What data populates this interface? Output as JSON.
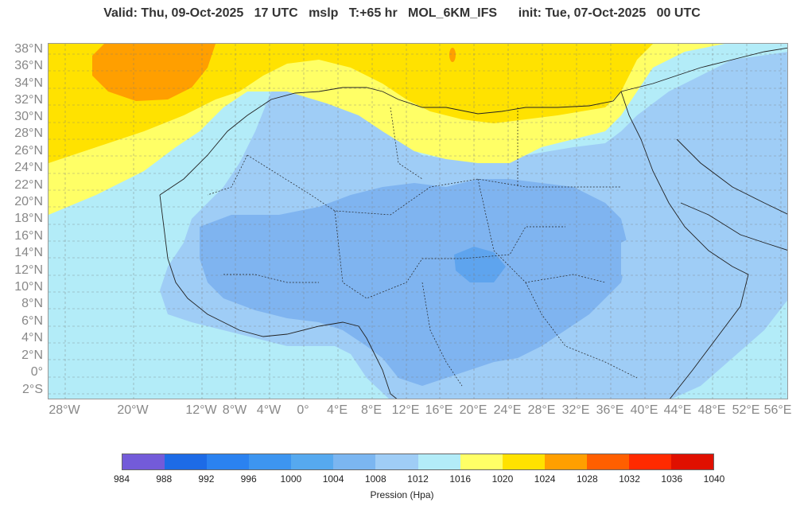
{
  "header": {
    "title": "Valid: Thu, 09-Oct-2025   17 UTC   mslp   T:+65 hr   MOL_6KM_IFS      init: Tue, 07-Oct-2025   00 UTC"
  },
  "map": {
    "lat_labels": [
      "38°N",
      "36°N",
      "34°N",
      "32°N",
      "30°N",
      "28°N",
      "26°N",
      "24°N",
      "22°N",
      "20°N",
      "18°N",
      "16°N",
      "14°N",
      "12°N",
      "10°N",
      "8°N",
      "6°N",
      "4°N",
      "2°N",
      "0°",
      "2°S"
    ],
    "lon_labels": [
      "28°W",
      "20°W",
      "12°W",
      "8°W",
      "4°W",
      "0°",
      "4°E",
      "8°E",
      "12°E",
      "16°E",
      "20°E",
      "24°E",
      "28°E",
      "32°E",
      "36°E",
      "40°E",
      "44°E",
      "48°E",
      "52°E",
      "56°E"
    ],
    "lat_range": [
      -3,
      38.5
    ],
    "lon_range": [
      -30,
      57
    ],
    "variable": "mslp",
    "colors": {
      "c1008": "#9fcdf6",
      "c1004": "#7fb4f0",
      "c1000": "#5ea4ee",
      "c1012": "#b3ecf8",
      "c1016": "#ffff66",
      "c1020": "#ffe200",
      "c1024": "#ff9f00",
      "grid": "#7a7a7a",
      "border": "#222222"
    }
  },
  "colorbar": {
    "ticks": [
      "984",
      "988",
      "992",
      "996",
      "1000",
      "1004",
      "1008",
      "1012",
      "1016",
      "1020",
      "1024",
      "1028",
      "1032",
      "1036",
      "1040"
    ],
    "colors": [
      "#735bd9",
      "#1d6be6",
      "#2b82f0",
      "#3d95f0",
      "#56a9ef",
      "#7bb6f1",
      "#9fcdf6",
      "#b3ecf8",
      "#ffff66",
      "#ffe200",
      "#ff9f00",
      "#ff5f00",
      "#ff2a00",
      "#e01000"
    ],
    "label": "Pression (Hpa)"
  }
}
